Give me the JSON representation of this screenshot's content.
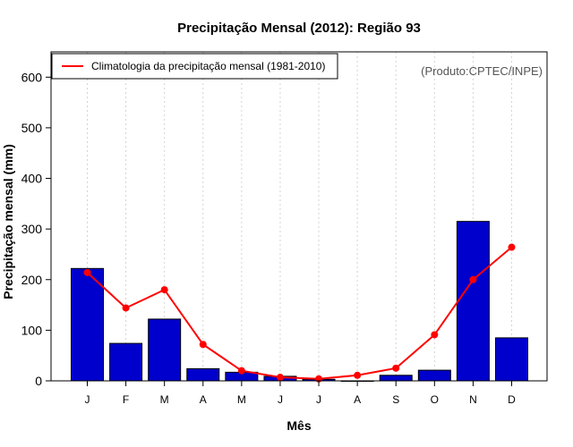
{
  "chart_data": {
    "type": "bar",
    "title": "Precipitação Mensal (2012): Região 93",
    "xlabel": "Mês",
    "ylabel": "Precipitação mensal (mm)",
    "ylim": [
      0,
      650
    ],
    "yticks": [
      0,
      100,
      200,
      300,
      400,
      500,
      600
    ],
    "grid": "vertical-dotted",
    "categories": [
      "J",
      "F",
      "M",
      "A",
      "M",
      "J",
      "J",
      "A",
      "S",
      "O",
      "N",
      "D"
    ],
    "series": [
      {
        "name": "Precipitação mensal (2012)",
        "type": "bar",
        "color": "#0000cc",
        "values": [
          222,
          74,
          122,
          24,
          17,
          9,
          3,
          0,
          11,
          21,
          315,
          85
        ]
      },
      {
        "name": "Climatologia da precipitação mensal (1981-2010)",
        "type": "line",
        "color": "#ff0000",
        "values": [
          214,
          144,
          180,
          72,
          20,
          7,
          4,
          11,
          25,
          91,
          200,
          264
        ]
      }
    ],
    "legend": {
      "position": "top-left",
      "label": "Climatologia da precipitação mensal (1981-2010)"
    },
    "annotation": "(Produto:CPTEC/INPE)"
  }
}
